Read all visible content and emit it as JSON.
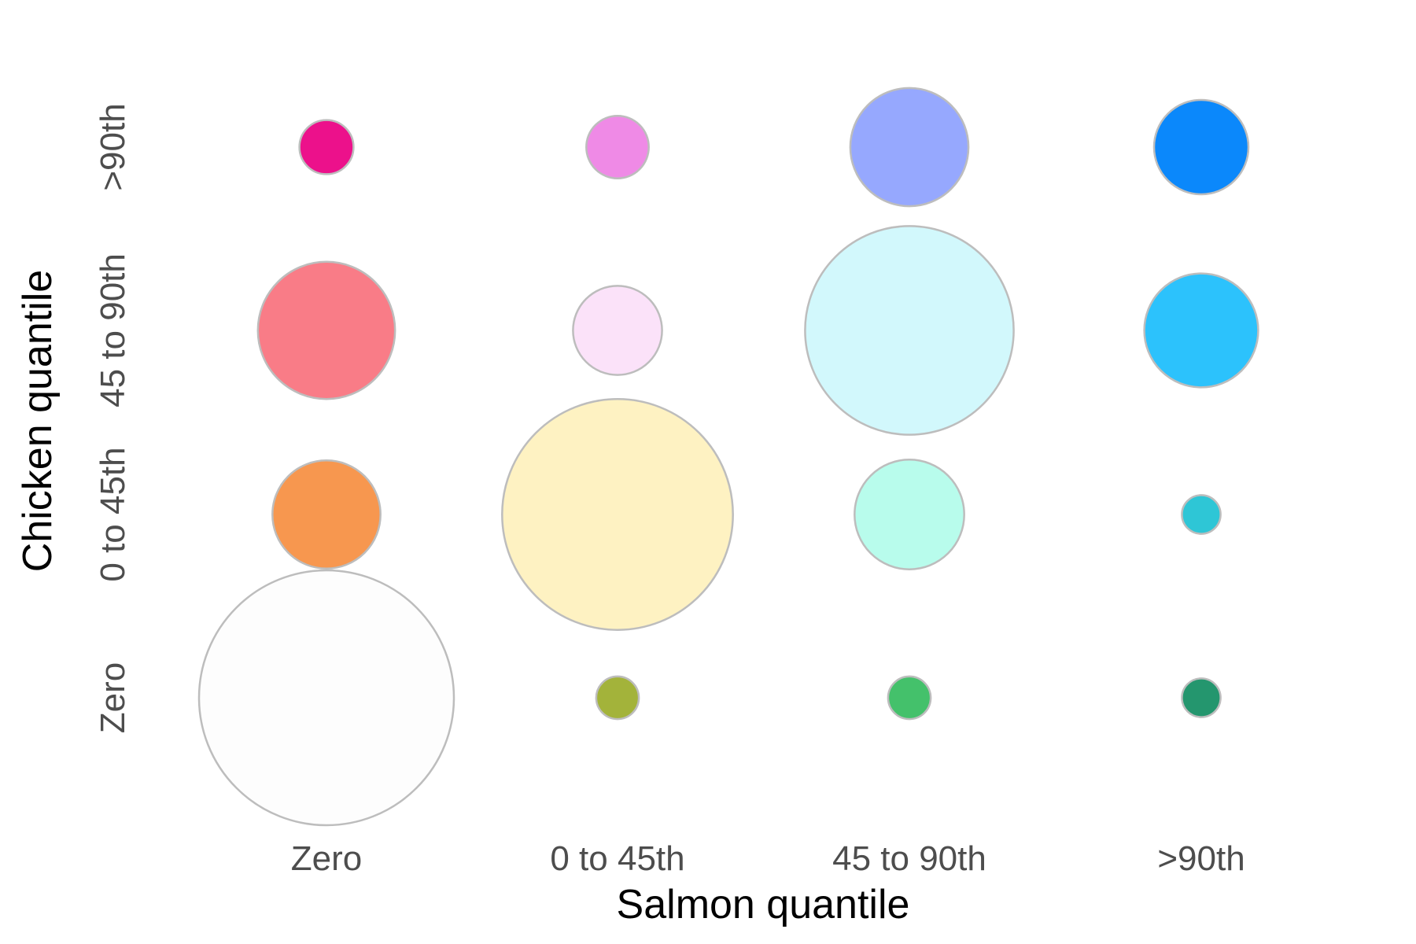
{
  "chart_data": {
    "type": "bubble",
    "xlabel": "Salmon quantile",
    "ylabel": "Chicken quantile",
    "x_categories": [
      "Zero",
      "0 to 45th",
      "45 to 90th",
      ">90th"
    ],
    "y_categories": [
      "Zero",
      "0 to 45th",
      "45 to 90th",
      ">90th"
    ],
    "grid": false,
    "legend": "none",
    "points": [
      {
        "x": "Zero",
        "y": "Zero",
        "size": 100.0,
        "color": "#fdfdfd"
      },
      {
        "x": "0 to 45th",
        "y": "Zero",
        "size": 2.8,
        "color": "#a3b33a"
      },
      {
        "x": "45 to 90th",
        "y": "Zero",
        "size": 2.8,
        "color": "#44c16b"
      },
      {
        "x": ">90th",
        "y": "Zero",
        "size": 2.3,
        "color": "#24966e"
      },
      {
        "x": "Zero",
        "y": "0 to 45th",
        "size": 18.0,
        "color": "#f7974f"
      },
      {
        "x": "0 to 45th",
        "y": "0 to 45th",
        "size": 82.0,
        "color": "#fef2c2"
      },
      {
        "x": "45 to 90th",
        "y": "0 to 45th",
        "size": 18.5,
        "color": "#b8fcec"
      },
      {
        "x": ">90th",
        "y": "0 to 45th",
        "size": 2.3,
        "color": "#2ec6d6"
      },
      {
        "x": "Zero",
        "y": "45 to 90th",
        "size": 29.0,
        "color": "#f97c87"
      },
      {
        "x": "0 to 45th",
        "y": "45 to 90th",
        "size": 12.2,
        "color": "#fbe2f9"
      },
      {
        "x": "45 to 90th",
        "y": "45 to 90th",
        "size": 67.0,
        "color": "#d2f8fc"
      },
      {
        "x": ">90th",
        "y": "45 to 90th",
        "size": 20.0,
        "color": "#2cc2fc"
      },
      {
        "x": "Zero",
        "y": ">90th",
        "size": 4.5,
        "color": "#ec118b"
      },
      {
        "x": "0 to 45th",
        "y": ">90th",
        "size": 6.0,
        "color": "#ef8ae6"
      },
      {
        "x": "45 to 90th",
        "y": ">90th",
        "size": 21.5,
        "color": "#96a8fe"
      },
      {
        "x": ">90th",
        "y": ">90th",
        "size": 13.7,
        "color": "#0b88fb"
      }
    ]
  }
}
